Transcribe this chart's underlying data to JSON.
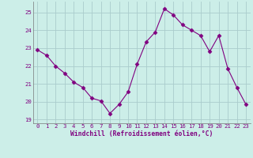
{
  "x": [
    0,
    1,
    2,
    3,
    4,
    5,
    6,
    7,
    8,
    9,
    10,
    11,
    12,
    13,
    14,
    15,
    16,
    17,
    18,
    19,
    20,
    21,
    22,
    23
  ],
  "y": [
    22.9,
    22.6,
    22.0,
    21.6,
    21.1,
    20.8,
    20.2,
    20.05,
    19.35,
    19.85,
    20.55,
    22.1,
    23.35,
    23.9,
    25.2,
    24.85,
    24.3,
    24.0,
    23.7,
    22.8,
    23.7,
    21.85,
    20.8,
    19.85
  ],
  "line_color": "#800080",
  "marker": "D",
  "marker_size": 2.5,
  "bg_color": "#cceee8",
  "grid_color": "#aacccc",
  "xlabel": "Windchill (Refroidissement éolien,°C)",
  "xlabel_color": "#800080",
  "tick_color": "#800080",
  "ylim": [
    18.8,
    25.6
  ],
  "yticks": [
    19,
    20,
    21,
    22,
    23,
    24,
    25
  ],
  "xlim": [
    -0.5,
    23.5
  ],
  "xticks": [
    0,
    1,
    2,
    3,
    4,
    5,
    6,
    7,
    8,
    9,
    10,
    11,
    12,
    13,
    14,
    15,
    16,
    17,
    18,
    19,
    20,
    21,
    22,
    23
  ]
}
